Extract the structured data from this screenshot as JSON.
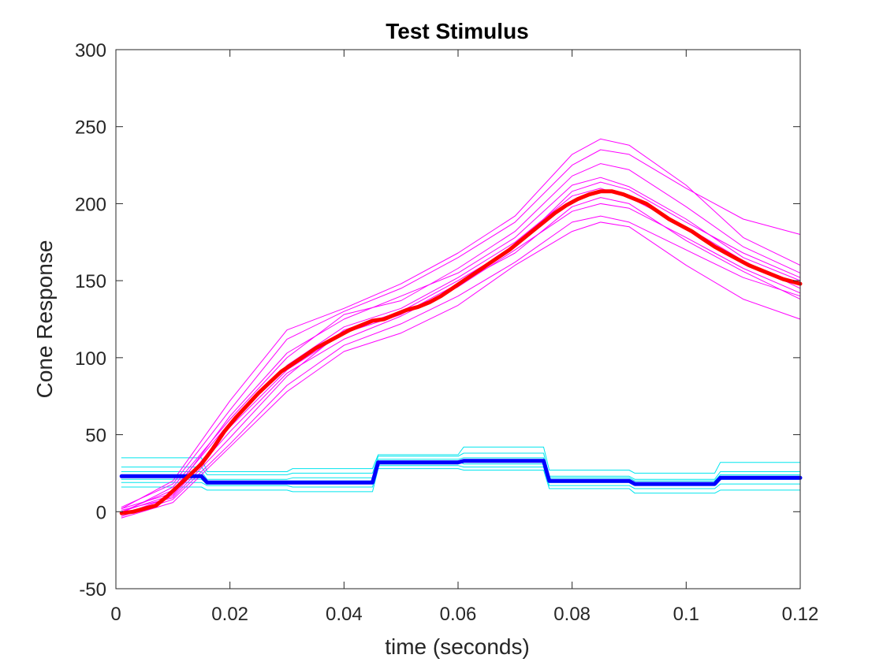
{
  "chart_data": {
    "type": "line",
    "title": "Test Stimulus",
    "xlabel": "time (seconds)",
    "ylabel": "Cone Response",
    "xlim": [
      0,
      0.12
    ],
    "ylim": [
      -50,
      300
    ],
    "xticks": [
      0,
      0.02,
      0.04,
      0.06,
      0.08,
      0.1,
      0.12
    ],
    "xtick_labels": [
      "0",
      "0.02",
      "0.04",
      "0.06",
      "0.08",
      "0.1",
      "0.12"
    ],
    "yticks": [
      -50,
      0,
      50,
      100,
      150,
      200,
      250,
      300
    ],
    "ytick_labels": [
      "-50",
      "0",
      "50",
      "100",
      "150",
      "200",
      "250",
      "300"
    ],
    "grid": false,
    "box": true,
    "colors": {
      "mean_response": "#ff0000",
      "trial_response": "#ff00ff",
      "mean_stimulus": "#0000ff",
      "trial_stimulus": "#00e5ee",
      "axis": "#262626"
    },
    "mean_response": {
      "x": [
        0.001,
        0.003,
        0.005,
        0.007,
        0.009,
        0.011,
        0.013,
        0.015,
        0.017,
        0.019,
        0.021,
        0.023,
        0.025,
        0.027,
        0.029,
        0.031,
        0.033,
        0.035,
        0.037,
        0.039,
        0.041,
        0.043,
        0.045,
        0.047,
        0.049,
        0.051,
        0.053,
        0.055,
        0.057,
        0.059,
        0.061,
        0.063,
        0.065,
        0.067,
        0.069,
        0.071,
        0.073,
        0.075,
        0.077,
        0.079,
        0.081,
        0.083,
        0.085,
        0.087,
        0.089,
        0.091,
        0.093,
        0.095,
        0.097,
        0.099,
        0.101,
        0.103,
        0.105,
        0.107,
        0.109,
        0.111,
        0.113,
        0.115,
        0.117,
        0.119,
        0.12
      ],
      "y": [
        -1,
        0,
        2,
        4,
        10,
        17,
        24,
        31,
        41,
        52,
        61,
        69,
        77,
        84,
        91,
        96,
        101,
        106,
        110,
        114,
        118,
        121,
        124,
        125,
        128,
        131,
        133,
        136,
        140,
        145,
        150,
        155,
        160,
        165,
        170,
        176,
        182,
        188,
        194,
        199,
        203,
        206,
        208,
        208,
        206,
        203,
        200,
        195,
        190,
        186,
        182,
        177,
        172,
        168,
        164,
        160,
        157,
        154,
        151,
        149,
        148
      ]
    },
    "trial_responses": [
      {
        "x": [
          0.001,
          0.01,
          0.02,
          0.03,
          0.04,
          0.05,
          0.06,
          0.07,
          0.08,
          0.085,
          0.09,
          0.1,
          0.11,
          0.12
        ],
        "y": [
          2,
          12,
          62,
          103,
          125,
          140,
          155,
          178,
          212,
          217,
          211,
          190,
          165,
          150
        ]
      },
      {
        "x": [
          0.001,
          0.01,
          0.02,
          0.03,
          0.04,
          0.05,
          0.06,
          0.07,
          0.08,
          0.085,
          0.09,
          0.1,
          0.11,
          0.12
        ],
        "y": [
          -3,
          8,
          44,
          82,
          108,
          122,
          140,
          162,
          188,
          192,
          188,
          170,
          152,
          140
        ]
      },
      {
        "x": [
          0.001,
          0.01,
          0.02,
          0.03,
          0.04,
          0.05,
          0.06,
          0.07,
          0.08,
          0.085,
          0.09,
          0.1,
          0.11,
          0.12
        ],
        "y": [
          0,
          14,
          58,
          95,
          120,
          132,
          152,
          175,
          205,
          210,
          204,
          185,
          163,
          145
        ]
      },
      {
        "x": [
          0.001,
          0.01,
          0.02,
          0.03,
          0.04,
          0.05,
          0.06,
          0.07,
          0.08,
          0.085,
          0.09,
          0.1,
          0.11,
          0.12
        ],
        "y": [
          -2,
          10,
          52,
          90,
          112,
          127,
          146,
          170,
          195,
          200,
          197,
          178,
          158,
          142
        ]
      },
      {
        "x": [
          0.001,
          0.01,
          0.02,
          0.03,
          0.04,
          0.05,
          0.06,
          0.07,
          0.08,
          0.085,
          0.09,
          0.1,
          0.11,
          0.12
        ],
        "y": [
          3,
          18,
          66,
          112,
          130,
          145,
          165,
          188,
          225,
          235,
          232,
          210,
          190,
          180
        ]
      },
      {
        "x": [
          0.001,
          0.01,
          0.02,
          0.03,
          0.04,
          0.05,
          0.06,
          0.07,
          0.08,
          0.085,
          0.09,
          0.1,
          0.11,
          0.12
        ],
        "y": [
          1,
          9,
          48,
          88,
          118,
          130,
          150,
          172,
          208,
          214,
          209,
          188,
          168,
          152
        ]
      },
      {
        "x": [
          0.001,
          0.01,
          0.02,
          0.03,
          0.04,
          0.05,
          0.06,
          0.07,
          0.08,
          0.085,
          0.09,
          0.1,
          0.11,
          0.12
        ],
        "y": [
          -1,
          16,
          60,
          100,
          128,
          137,
          158,
          182,
          218,
          226,
          222,
          198,
          172,
          155
        ]
      },
      {
        "x": [
          0.001,
          0.01,
          0.02,
          0.03,
          0.04,
          0.05,
          0.06,
          0.07,
          0.08,
          0.085,
          0.09,
          0.1,
          0.11,
          0.12
        ],
        "y": [
          -4,
          6,
          42,
          78,
          104,
          116,
          134,
          160,
          182,
          188,
          185,
          160,
          138,
          125
        ]
      },
      {
        "x": [
          0.001,
          0.01,
          0.02,
          0.03,
          0.04,
          0.05,
          0.06,
          0.07,
          0.08,
          0.085,
          0.09,
          0.1,
          0.11,
          0.12
        ],
        "y": [
          2,
          20,
          72,
          118,
          132,
          148,
          168,
          192,
          232,
          242,
          238,
          212,
          178,
          160
        ]
      },
      {
        "x": [
          0.001,
          0.01,
          0.02,
          0.03,
          0.04,
          0.05,
          0.06,
          0.07,
          0.08,
          0.085,
          0.09,
          0.1,
          0.11,
          0.12
        ],
        "y": [
          0,
          11,
          55,
          92,
          116,
          128,
          148,
          168,
          198,
          204,
          200,
          176,
          156,
          138
        ]
      }
    ],
    "mean_stimulus": {
      "x": [
        0.001,
        0.015,
        0.016,
        0.03,
        0.031,
        0.045,
        0.046,
        0.06,
        0.061,
        0.075,
        0.076,
        0.09,
        0.091,
        0.105,
        0.106,
        0.12
      ],
      "y": [
        23,
        23,
        19,
        19,
        19,
        19,
        32,
        32,
        33,
        33,
        20,
        20,
        18,
        18,
        22,
        22
      ]
    },
    "trial_stimuli": [
      {
        "x": [
          0.001,
          0.015,
          0.016,
          0.03,
          0.031,
          0.045,
          0.046,
          0.06,
          0.061,
          0.075,
          0.076,
          0.09,
          0.091,
          0.105,
          0.106,
          0.12
        ],
        "y": [
          35,
          35,
          26,
          26,
          28,
          28,
          37,
          37,
          42,
          42,
          27,
          27,
          25,
          25,
          32,
          32
        ]
      },
      {
        "x": [
          0.001,
          0.015,
          0.016,
          0.03,
          0.031,
          0.045,
          0.046,
          0.06,
          0.061,
          0.075,
          0.076,
          0.09,
          0.091,
          0.105,
          0.106,
          0.12
        ],
        "y": [
          16,
          16,
          14,
          14,
          13,
          13,
          28,
          28,
          27,
          27,
          15,
          15,
          12,
          12,
          14,
          14
        ]
      },
      {
        "x": [
          0.001,
          0.015,
          0.016,
          0.03,
          0.031,
          0.045,
          0.046,
          0.06,
          0.061,
          0.075,
          0.076,
          0.09,
          0.091,
          0.105,
          0.106,
          0.12
        ],
        "y": [
          29,
          29,
          24,
          24,
          25,
          25,
          36,
          36,
          38,
          38,
          23,
          23,
          21,
          21,
          26,
          26
        ]
      },
      {
        "x": [
          0.001,
          0.015,
          0.016,
          0.03,
          0.031,
          0.045,
          0.046,
          0.06,
          0.061,
          0.075,
          0.076,
          0.09,
          0.091,
          0.105,
          0.106,
          0.12
        ],
        "y": [
          19,
          19,
          17,
          17,
          16,
          16,
          30,
          30,
          29,
          29,
          17,
          17,
          15,
          15,
          18,
          18
        ]
      },
      {
        "x": [
          0.001,
          0.015,
          0.016,
          0.03,
          0.031,
          0.045,
          0.046,
          0.06,
          0.061,
          0.075,
          0.076,
          0.09,
          0.091,
          0.105,
          0.106,
          0.12
        ],
        "y": [
          26,
          26,
          21,
          21,
          22,
          22,
          34,
          34,
          35,
          35,
          22,
          22,
          20,
          20,
          24,
          24
        ]
      },
      {
        "x": [
          0.001,
          0.015,
          0.016,
          0.03,
          0.031,
          0.045,
          0.046,
          0.06,
          0.061,
          0.075,
          0.076,
          0.09,
          0.091,
          0.105,
          0.106,
          0.12
        ],
        "y": [
          21,
          21,
          18,
          18,
          19,
          19,
          33,
          33,
          31,
          31,
          19,
          19,
          17,
          17,
          21,
          21
        ]
      },
      {
        "x": [
          0.001,
          0.015,
          0.016,
          0.03,
          0.031,
          0.045,
          0.046,
          0.06,
          0.061,
          0.075,
          0.076,
          0.09,
          0.091,
          0.105,
          0.106,
          0.12
        ],
        "y": [
          24,
          24,
          20,
          20,
          20,
          20,
          31,
          31,
          33,
          33,
          21,
          21,
          19,
          19,
          23,
          23
        ]
      }
    ]
  }
}
